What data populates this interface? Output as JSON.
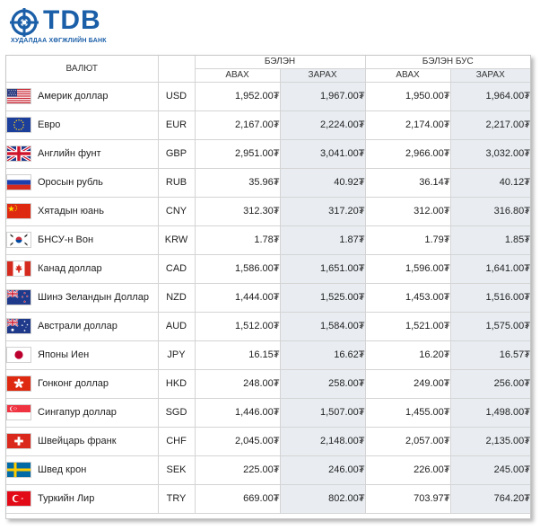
{
  "brand": {
    "name": "TDB",
    "subtitle": "ХУДАЛДАА ХӨГЖЛИЙН БАНК",
    "color": "#1b5fa8"
  },
  "table": {
    "currency_header": "ВАЛЮТ",
    "cash_header": "БЭЛЭН",
    "noncash_header": "БЭЛЭН БУС",
    "buy_label": "АВАХ",
    "sell_label": "ЗАРАХ",
    "shade_color": "#e9edf2",
    "rows": [
      {
        "flag": "us-flag-icon",
        "name": "Америк доллар",
        "code": "USD",
        "cash_buy": "1,952.00₮",
        "cash_sell": "1,967.00₮",
        "noncash_buy": "1,950.00₮",
        "noncash_sell": "1,964.00₮"
      },
      {
        "flag": "eu-flag-icon",
        "name": "Евро",
        "code": "EUR",
        "cash_buy": "2,167.00₮",
        "cash_sell": "2,224.00₮",
        "noncash_buy": "2,174.00₮",
        "noncash_sell": "2,217.00₮"
      },
      {
        "flag": "uk-flag-icon",
        "name": "Английн фунт",
        "code": "GBP",
        "cash_buy": "2,951.00₮",
        "cash_sell": "3,041.00₮",
        "noncash_buy": "2,966.00₮",
        "noncash_sell": "3,032.00₮"
      },
      {
        "flag": "ru-flag-icon",
        "name": "Оросын рубль",
        "code": "RUB",
        "cash_buy": "35.96₮",
        "cash_sell": "40.92₮",
        "noncash_buy": "36.14₮",
        "noncash_sell": "40.12₮"
      },
      {
        "flag": "cn-flag-icon",
        "name": "Хятадын юань",
        "code": "CNY",
        "cash_buy": "312.30₮",
        "cash_sell": "317.20₮",
        "noncash_buy": "312.00₮",
        "noncash_sell": "316.80₮"
      },
      {
        "flag": "kr-flag-icon",
        "name": "БНСУ-н Вон",
        "code": "KRW",
        "cash_buy": "1.78₮",
        "cash_sell": "1.87₮",
        "noncash_buy": "1.79₮",
        "noncash_sell": "1.85₮"
      },
      {
        "flag": "ca-flag-icon",
        "name": "Канад доллар",
        "code": "CAD",
        "cash_buy": "1,586.00₮",
        "cash_sell": "1,651.00₮",
        "noncash_buy": "1,596.00₮",
        "noncash_sell": "1,641.00₮"
      },
      {
        "flag": "nz-flag-icon",
        "name": "Шинэ Зеландын Доллар",
        "code": "NZD",
        "cash_buy": "1,444.00₮",
        "cash_sell": "1,525.00₮",
        "noncash_buy": "1,453.00₮",
        "noncash_sell": "1,516.00₮"
      },
      {
        "flag": "au-flag-icon",
        "name": "Австрали доллар",
        "code": "AUD",
        "cash_buy": "1,512.00₮",
        "cash_sell": "1,584.00₮",
        "noncash_buy": "1,521.00₮",
        "noncash_sell": "1,575.00₮"
      },
      {
        "flag": "jp-flag-icon",
        "name": "Японы Иен",
        "code": "JPY",
        "cash_buy": "16.15₮",
        "cash_sell": "16.62₮",
        "noncash_buy": "16.20₮",
        "noncash_sell": "16.57₮"
      },
      {
        "flag": "hk-flag-icon",
        "name": "Гонконг доллар",
        "code": "HKD",
        "cash_buy": "248.00₮",
        "cash_sell": "258.00₮",
        "noncash_buy": "249.00₮",
        "noncash_sell": "256.00₮"
      },
      {
        "flag": "sg-flag-icon",
        "name": "Сингапур доллар",
        "code": "SGD",
        "cash_buy": "1,446.00₮",
        "cash_sell": "1,507.00₮",
        "noncash_buy": "1,455.00₮",
        "noncash_sell": "1,498.00₮"
      },
      {
        "flag": "ch-flag-icon",
        "name": "Швейцарь франк",
        "code": "CHF",
        "cash_buy": "2,045.00₮",
        "cash_sell": "2,148.00₮",
        "noncash_buy": "2,057.00₮",
        "noncash_sell": "2,135.00₮"
      },
      {
        "flag": "se-flag-icon",
        "name": "Швед крон",
        "code": "SEK",
        "cash_buy": "225.00₮",
        "cash_sell": "246.00₮",
        "noncash_buy": "226.00₮",
        "noncash_sell": "245.00₮"
      },
      {
        "flag": "tr-flag-icon",
        "name": "Туркийн Лир",
        "code": "TRY",
        "cash_buy": "669.00₮",
        "cash_sell": "802.00₮",
        "noncash_buy": "703.97₮",
        "noncash_sell": "764.20₮"
      }
    ]
  }
}
